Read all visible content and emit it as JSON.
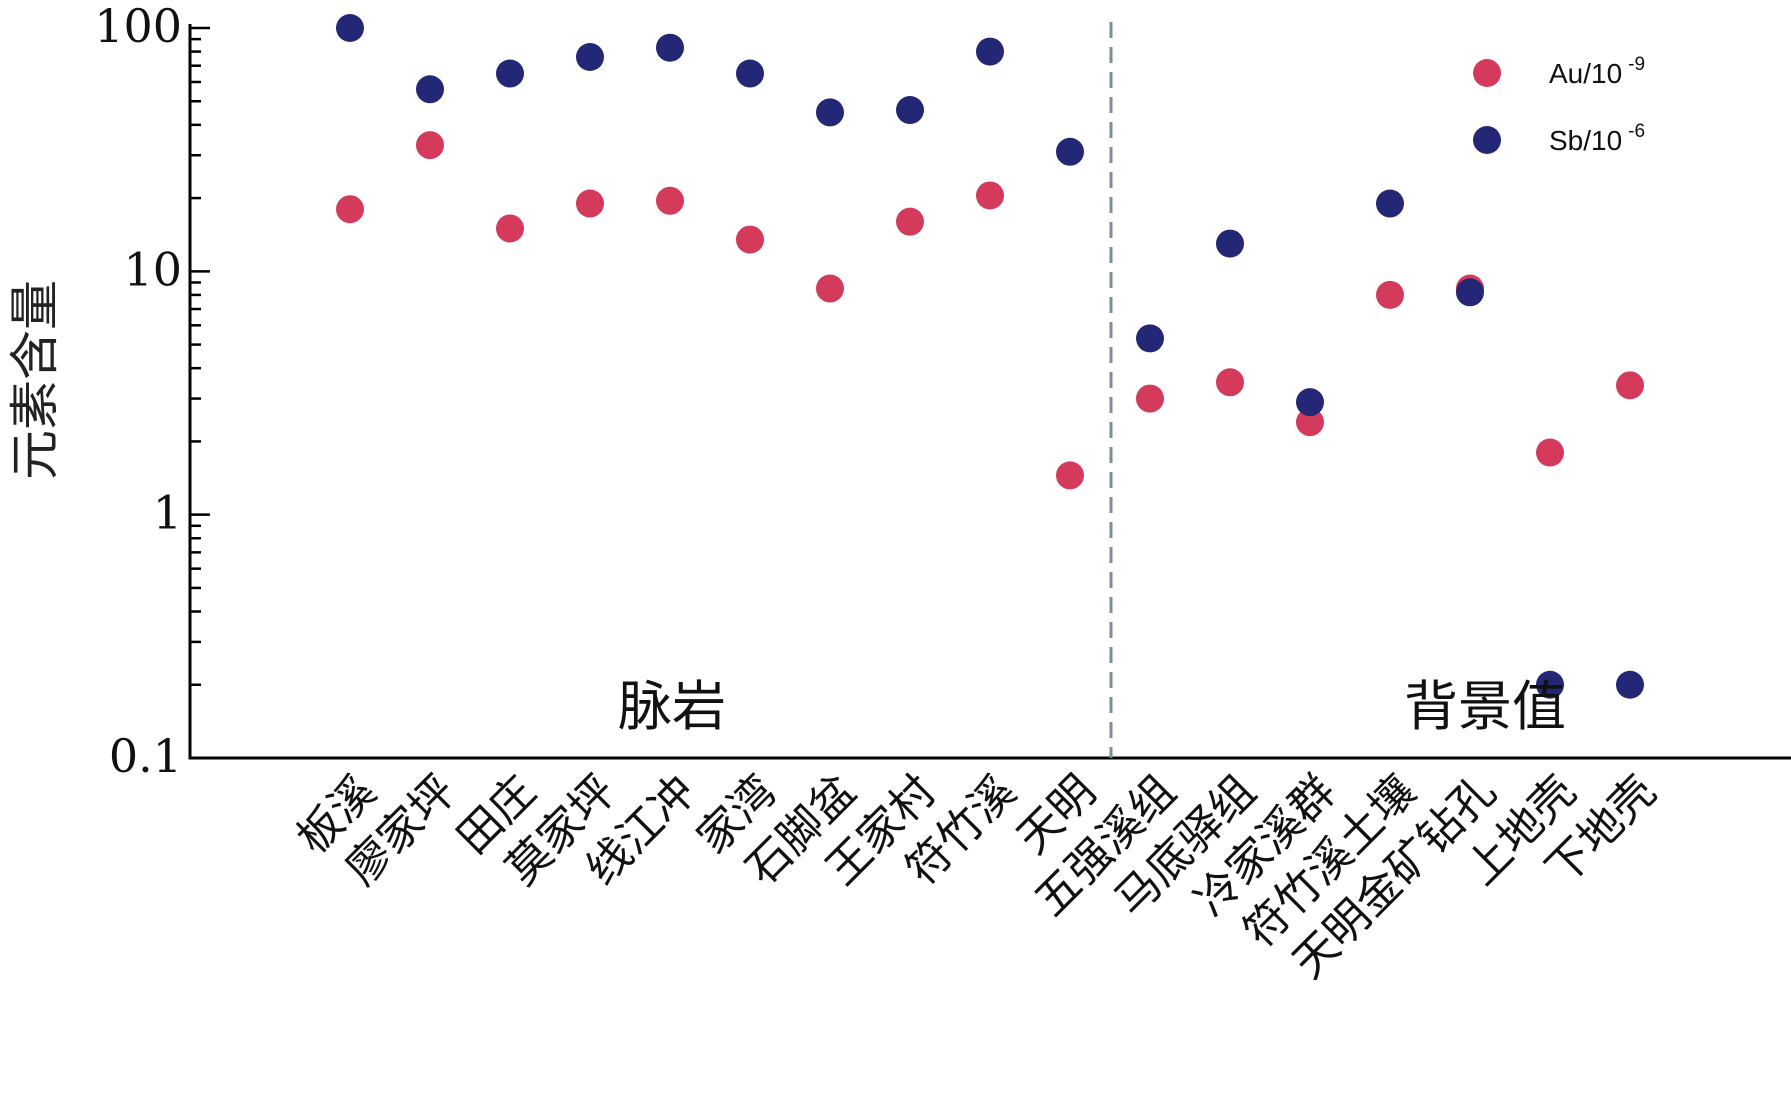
{
  "chart_data": {
    "type": "scatter",
    "ylabel": "元素含量",
    "yscale": "log",
    "ylim": [
      0.1,
      100
    ],
    "yticks": [
      "100",
      "10",
      "1",
      "0.1"
    ],
    "categories": [
      "板溪",
      "廖家坪",
      "田庄",
      "莫家坪",
      "线江冲",
      "家湾",
      "石脚盆",
      "王家村",
      "符竹溪",
      "天明",
      "五强溪组",
      "马底驿组",
      "冷家溪群",
      "符竹溪土壤",
      "天明金矿钻孔",
      "上地壳",
      "下地壳"
    ],
    "groups": [
      {
        "label": "脉岩",
        "from": 0,
        "to": 9
      },
      {
        "label": "背景值",
        "from": 10,
        "to": 16
      }
    ],
    "series": [
      {
        "name": "Au/10",
        "sup": "-9",
        "color": "#d33a5c",
        "values": [
          18,
          33,
          15,
          19,
          19.5,
          13.5,
          8.5,
          16,
          20.5,
          1.45,
          3.0,
          3.5,
          2.4,
          8.0,
          8.5,
          1.8,
          3.4
        ]
      },
      {
        "name": "Sb/10",
        "sup": "-6",
        "color": "#232776",
        "values": [
          100,
          56,
          65,
          76,
          83,
          65,
          45,
          46,
          80,
          31,
          5.3,
          13,
          2.9,
          19,
          8.2,
          0.2,
          0.2
        ]
      }
    ],
    "legend_position": "top-right",
    "grid": false
  }
}
